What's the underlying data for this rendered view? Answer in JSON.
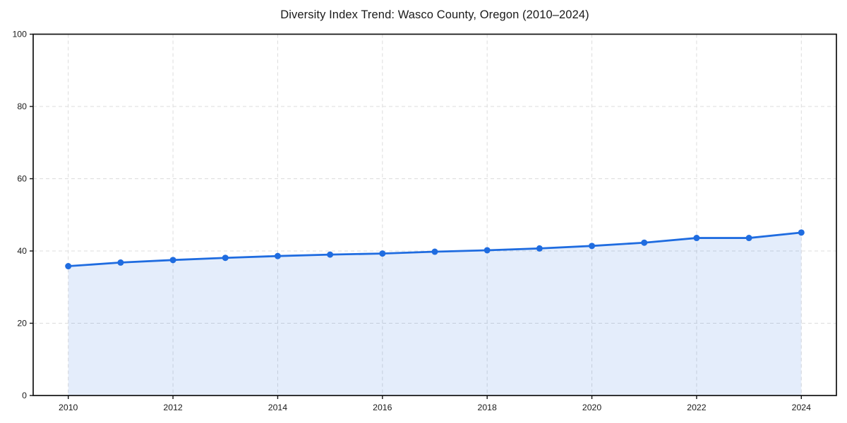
{
  "chart_data": {
    "type": "line",
    "title": "Diversity Index Trend: Wasco County, Oregon (2010–2024)",
    "series_name": "Diversity Index",
    "x": [
      2010,
      2011,
      2012,
      2013,
      2014,
      2015,
      2016,
      2017,
      2018,
      2019,
      2020,
      2021,
      2022,
      2023,
      2024
    ],
    "values": [
      35.8,
      36.8,
      37.5,
      38.1,
      38.6,
      39.0,
      39.3,
      39.8,
      40.2,
      40.7,
      41.4,
      42.3,
      43.6,
      43.6,
      45.1
    ],
    "xlabel": "",
    "ylabel": "",
    "ylim": [
      0,
      100
    ],
    "x_range": [
      2009.33,
      2024.67
    ],
    "yticks": [
      0,
      20,
      40,
      60,
      80,
      100
    ],
    "xticks": [
      2010,
      2012,
      2014,
      2016,
      2018,
      2020,
      2022,
      2024
    ],
    "grid": "dashed both axes",
    "legend": "none",
    "area_fill_under_line": true,
    "colors": {
      "line": "#1f6ce0",
      "marker": "#1f6ce0",
      "area_fill": "rgba(31,108,224,0.12)",
      "grid": "#dcdcdc",
      "frame": "#111111",
      "text": "#1a1a1a",
      "background": "#ffffff"
    }
  }
}
